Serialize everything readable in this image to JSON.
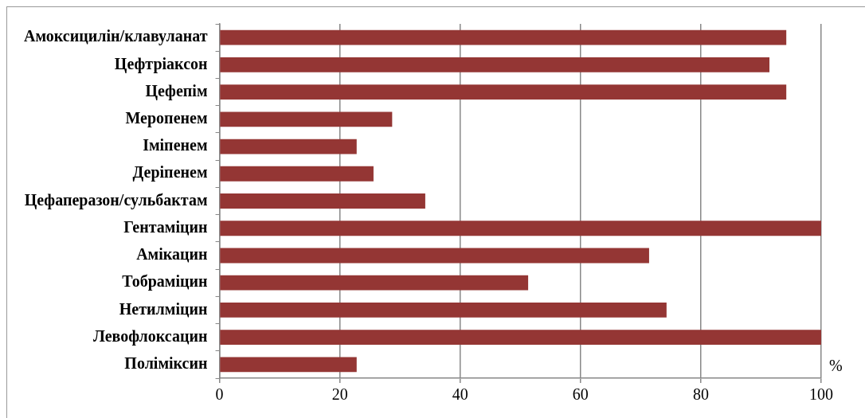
{
  "chart_data": {
    "type": "bar",
    "orientation": "horizontal",
    "xlabel": "%",
    "categories": [
      "Амоксицилін/клавуланат",
      "Цефтріаксон",
      "Цефепім",
      "Меропенем",
      "Іміпенем",
      "Деріпенем",
      "Цефаперазон/сульбактам",
      "Гентаміцин",
      "Амікацин",
      "Тобраміцин",
      "Нетилміцин",
      "Левофлоксацин",
      "Поліміксин"
    ],
    "values": [
      94.2,
      91.4,
      94.2,
      28.7,
      22.8,
      25.6,
      34.2,
      100,
      71.4,
      51.3,
      74.3,
      100,
      22.8
    ],
    "color": "#943634",
    "xlim": [
      0,
      100
    ],
    "xticks": [
      0,
      20,
      40,
      60,
      80,
      100
    ],
    "grid": "x",
    "legend": false
  }
}
